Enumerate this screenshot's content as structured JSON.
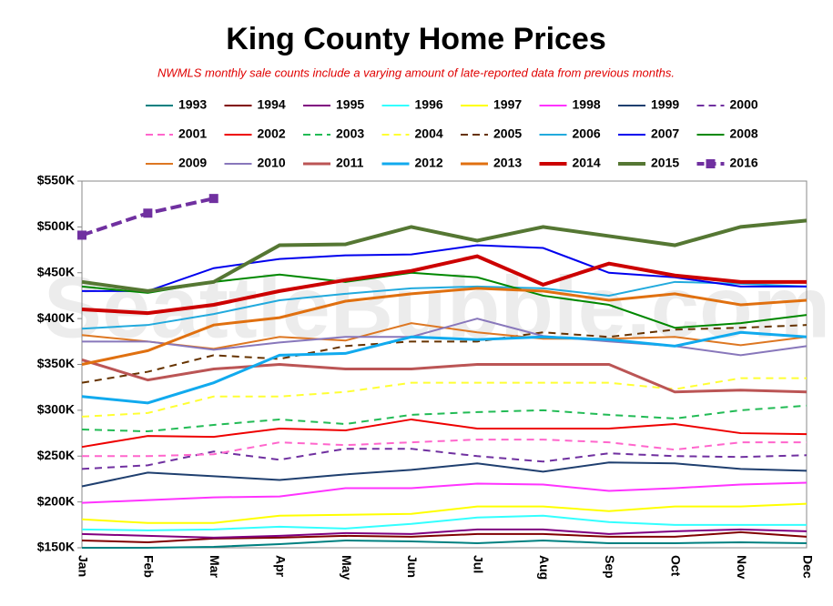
{
  "chart_data": {
    "type": "line",
    "title": "King County Home Prices",
    "subtitle": "NWMLS monthly sale counts include a varying amount of late-reported  data from previous months.",
    "watermark": "SeattleBubble.com",
    "categories": [
      "Jan",
      "Feb",
      "Mar",
      "Apr",
      "May",
      "Jun",
      "Jul",
      "Aug",
      "Sep",
      "Oct",
      "Nov",
      "Dec"
    ],
    "ylim": [
      150000,
      550000
    ],
    "yticks": [
      {
        "value": 150000,
        "label": "$150K"
      },
      {
        "value": 200000,
        "label": "$200K"
      },
      {
        "value": 250000,
        "label": "$250K"
      },
      {
        "value": 300000,
        "label": "$300K"
      },
      {
        "value": 350000,
        "label": "$350K"
      },
      {
        "value": 400000,
        "label": "$400K"
      },
      {
        "value": 450000,
        "label": "$450K"
      },
      {
        "value": 500000,
        "label": "$500K"
      },
      {
        "value": 550000,
        "label": "$550K"
      }
    ],
    "legend": "top",
    "series": [
      {
        "name": "1993",
        "color": "#008080",
        "width": 2,
        "dash": false,
        "values": [
          150000,
          150000,
          151000,
          154000,
          158000,
          157000,
          155000,
          158000,
          155000,
          155000,
          156000,
          155000
        ]
      },
      {
        "name": "1994",
        "color": "#800000",
        "width": 2,
        "dash": false,
        "values": [
          158000,
          156000,
          160000,
          161000,
          163000,
          162000,
          165000,
          165000,
          162000,
          162000,
          167000,
          162000
        ]
      },
      {
        "name": "1995",
        "color": "#800080",
        "width": 2,
        "dash": false,
        "values": [
          165000,
          163000,
          161000,
          163000,
          166000,
          165000,
          170000,
          170000,
          165000,
          168000,
          170000,
          168000
        ]
      },
      {
        "name": "1996",
        "color": "#33ffff",
        "width": 2,
        "dash": false,
        "values": [
          170000,
          169000,
          170000,
          173000,
          171000,
          176000,
          183000,
          185000,
          178000,
          175000,
          175000,
          175000
        ]
      },
      {
        "name": "1997",
        "color": "#ffff00",
        "width": 2,
        "dash": false,
        "values": [
          181000,
          177000,
          177000,
          185000,
          186000,
          187000,
          195000,
          195000,
          190000,
          195000,
          195000,
          198000
        ]
      },
      {
        "name": "1998",
        "color": "#ff33ff",
        "width": 2,
        "dash": false,
        "values": [
          199000,
          202000,
          205000,
          206000,
          215000,
          215000,
          220000,
          219000,
          212000,
          215000,
          219000,
          221000
        ]
      },
      {
        "name": "1999",
        "color": "#1f3f6f",
        "width": 2,
        "dash": false,
        "values": [
          217000,
          232000,
          228000,
          224000,
          230000,
          235000,
          242000,
          233000,
          243000,
          242000,
          236000,
          234000
        ]
      },
      {
        "name": "2000",
        "color": "#7030a0",
        "width": 2,
        "dash": true,
        "values": [
          236000,
          240000,
          255000,
          246000,
          258000,
          258000,
          250000,
          244000,
          253000,
          250000,
          249000,
          251000
        ]
      },
      {
        "name": "2001",
        "color": "#ff66cc",
        "width": 2,
        "dash": true,
        "values": [
          250000,
          250000,
          252000,
          265000,
          262000,
          265000,
          268000,
          268000,
          265000,
          257000,
          265000,
          265000
        ]
      },
      {
        "name": "2002",
        "color": "#ee0000",
        "width": 2,
        "dash": false,
        "values": [
          260000,
          272000,
          271000,
          280000,
          278000,
          290000,
          280000,
          280000,
          280000,
          285000,
          275000,
          274000
        ]
      },
      {
        "name": "2003",
        "color": "#22bb55",
        "width": 2,
        "dash": true,
        "values": [
          279000,
          277000,
          284000,
          290000,
          285000,
          295000,
          298000,
          300000,
          295000,
          291000,
          300000,
          305000
        ]
      },
      {
        "name": "2004",
        "color": "#ffff33",
        "width": 2,
        "dash": true,
        "values": [
          293000,
          297000,
          315000,
          315000,
          320000,
          330000,
          330000,
          330000,
          330000,
          323000,
          335000,
          335000
        ]
      },
      {
        "name": "2005",
        "color": "#663300",
        "width": 2,
        "dash": true,
        "values": [
          330000,
          342000,
          360000,
          356000,
          370000,
          375000,
          375000,
          385000,
          380000,
          388000,
          390000,
          393000
        ]
      },
      {
        "name": "2006",
        "color": "#22aadd",
        "width": 2,
        "dash": false,
        "values": [
          389000,
          393000,
          405000,
          420000,
          427000,
          433000,
          435000,
          433000,
          425000,
          440000,
          438000,
          435000
        ]
      },
      {
        "name": "2007",
        "color": "#0000ee",
        "width": 2,
        "dash": false,
        "values": [
          430000,
          430000,
          455000,
          465000,
          469000,
          470000,
          480000,
          477000,
          450000,
          445000,
          435000,
          435000
        ]
      },
      {
        "name": "2008",
        "color": "#008800",
        "width": 2,
        "dash": false,
        "values": [
          435000,
          428000,
          440000,
          448000,
          440000,
          450000,
          445000,
          425000,
          415000,
          390000,
          395000,
          404000
        ]
      },
      {
        "name": "2009",
        "color": "#dd7722",
        "width": 2,
        "dash": false,
        "values": [
          382000,
          375000,
          367000,
          380000,
          376000,
          395000,
          385000,
          378000,
          378000,
          380000,
          371000,
          380000
        ]
      },
      {
        "name": "2010",
        "color": "#8877bb",
        "width": 2,
        "dash": false,
        "values": [
          375000,
          375000,
          366000,
          374000,
          380000,
          380000,
          400000,
          381000,
          375000,
          370000,
          360000,
          370000
        ]
      },
      {
        "name": "2011",
        "color": "#bb5555",
        "width": 3,
        "dash": false,
        "values": [
          355000,
          333000,
          345000,
          350000,
          345000,
          345000,
          350000,
          350000,
          350000,
          320000,
          322000,
          320000
        ]
      },
      {
        "name": "2012",
        "color": "#11aaee",
        "width": 3,
        "dash": false,
        "values": [
          315000,
          308000,
          330000,
          360000,
          362000,
          380000,
          377000,
          380000,
          377000,
          370000,
          385000,
          380000
        ]
      },
      {
        "name": "2013",
        "color": "#e07010",
        "width": 3,
        "dash": false,
        "values": [
          350000,
          365000,
          393000,
          401000,
          419000,
          427000,
          433000,
          430000,
          420000,
          427000,
          415000,
          420000
        ]
      },
      {
        "name": "2014",
        "color": "#cc0000",
        "width": 4,
        "dash": false,
        "values": [
          410000,
          406000,
          415000,
          430000,
          442000,
          452000,
          468000,
          437000,
          460000,
          447000,
          440000,
          440000
        ]
      },
      {
        "name": "2015",
        "color": "#557733",
        "width": 4,
        "dash": false,
        "values": [
          440000,
          430000,
          440000,
          480000,
          481000,
          500000,
          485000,
          500000,
          490000,
          480000,
          500000,
          507000
        ]
      },
      {
        "name": "2016",
        "color": "#7030a0",
        "width": 4,
        "dash": true,
        "marker": "square",
        "values": [
          491000,
          515000,
          531000,
          null,
          null,
          null,
          null,
          null,
          null,
          null,
          null,
          null
        ]
      }
    ]
  }
}
